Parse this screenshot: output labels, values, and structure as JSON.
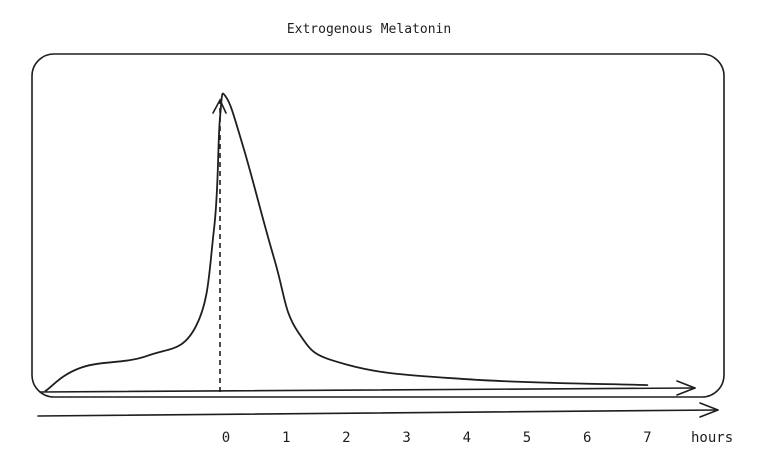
{
  "title": "Extrogenous Melatonin",
  "x_axis": {
    "unit_label": "hours",
    "ticks": [
      "0",
      "1",
      "2",
      "3",
      "4",
      "5",
      "6",
      "7"
    ]
  },
  "colors": {
    "stroke": "#1e1e1e",
    "background": "#ffffff"
  },
  "chart_data": {
    "type": "line",
    "title": "Extrogenous Melatonin",
    "xlabel": "hours",
    "ylabel": "",
    "x_ticks": [
      0,
      1,
      2,
      3,
      4,
      5,
      6,
      7
    ],
    "marker": {
      "x": 0,
      "style": "dashed"
    },
    "series": [
      {
        "points": [
          {
            "x": -3.0,
            "y": 0.0
          },
          {
            "x": -2.4,
            "y": 0.08
          },
          {
            "x": -1.3,
            "y": 0.12
          },
          {
            "x": -0.5,
            "y": 0.22
          },
          {
            "x": -0.2,
            "y": 0.55
          },
          {
            "x": -0.1,
            "y": 0.93
          },
          {
            "x": 0.0,
            "y": 1.0
          },
          {
            "x": 0.3,
            "y": 0.82
          },
          {
            "x": 0.8,
            "y": 0.45
          },
          {
            "x": 1.2,
            "y": 0.2
          },
          {
            "x": 2.0,
            "y": 0.09
          },
          {
            "x": 4.0,
            "y": 0.04
          },
          {
            "x": 7.0,
            "y": 0.02
          }
        ]
      }
    ]
  }
}
